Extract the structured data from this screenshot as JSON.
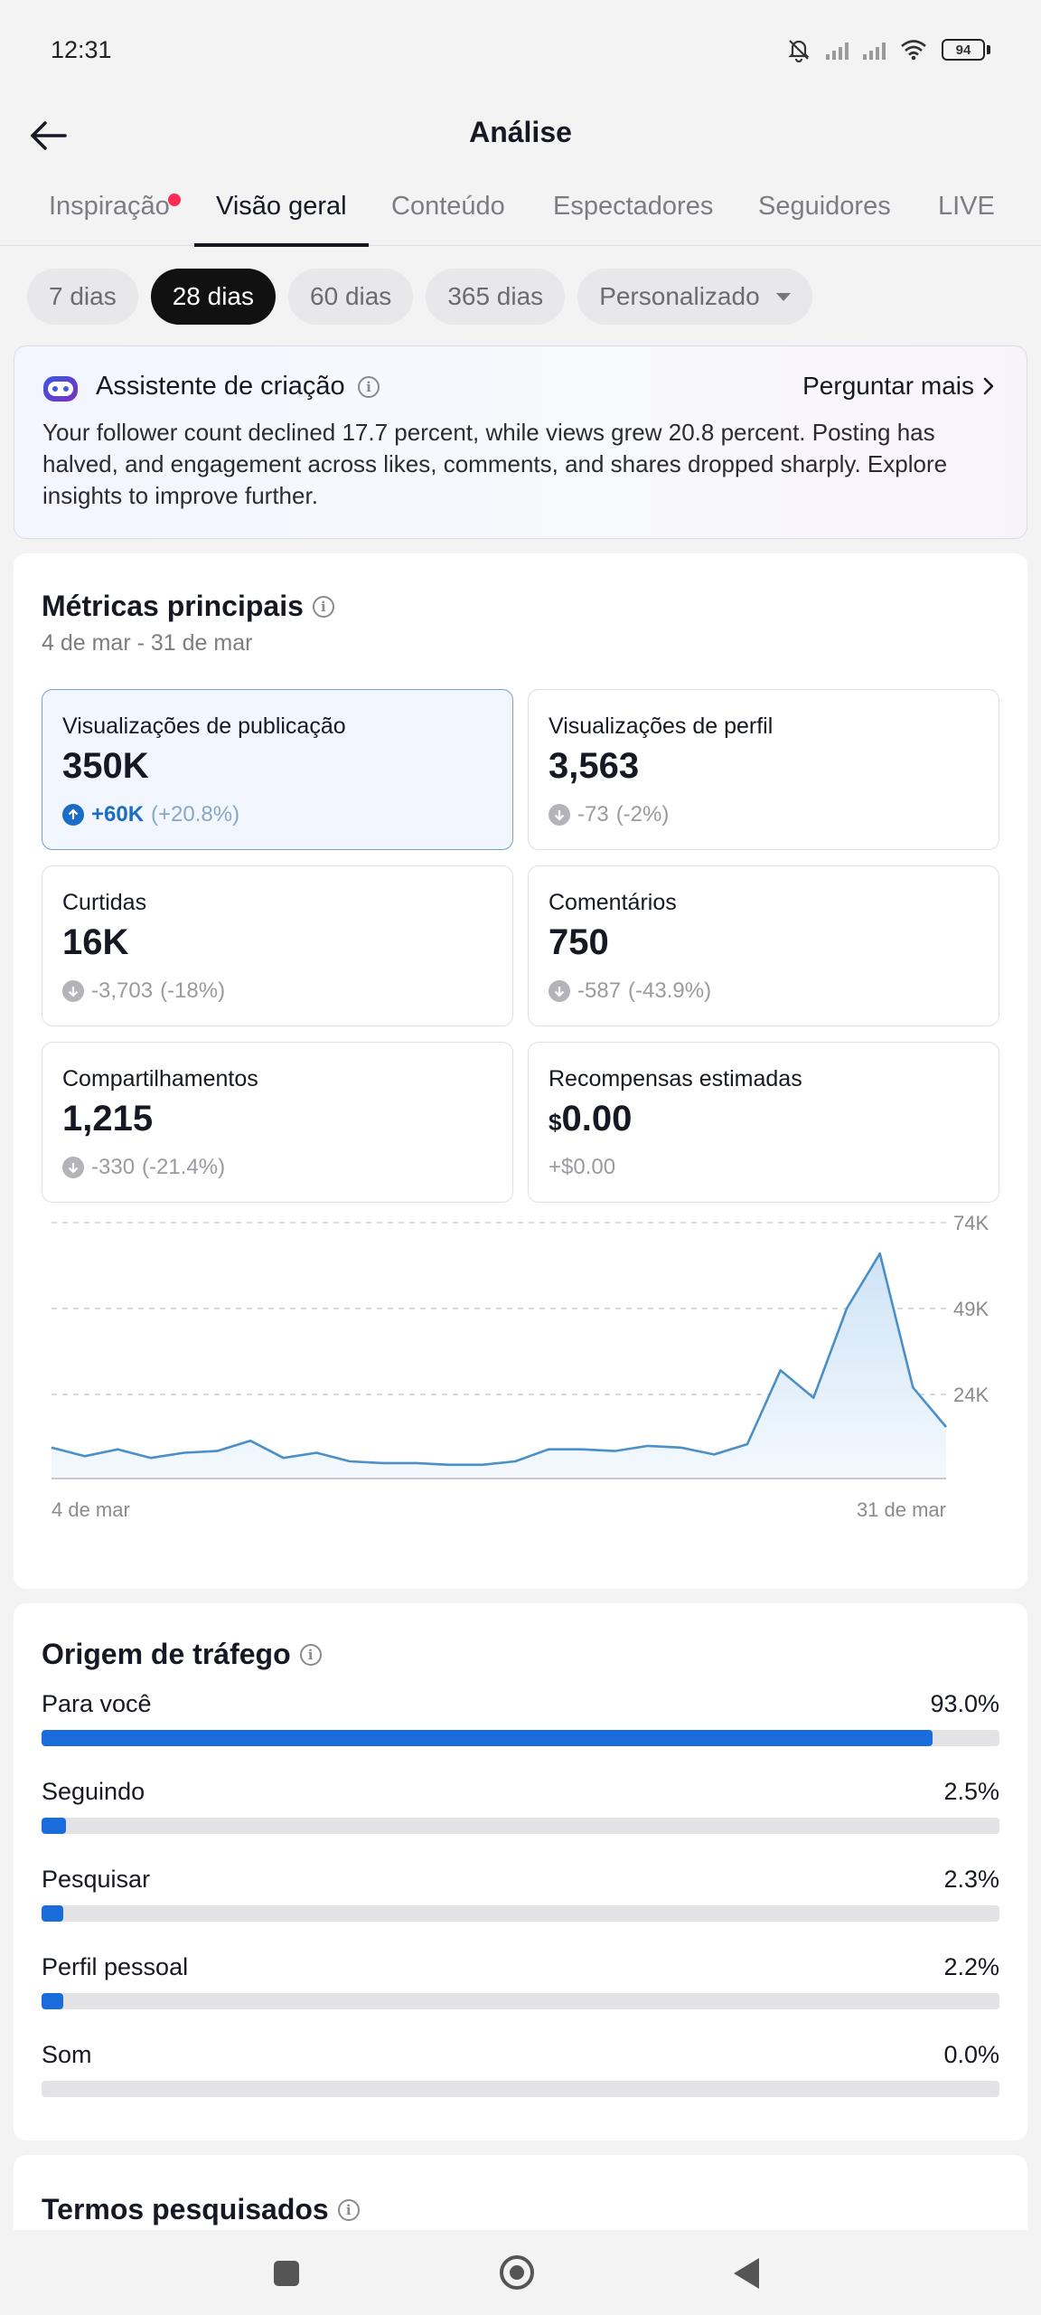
{
  "status_bar": {
    "time": "12:31",
    "battery": "94"
  },
  "header": {
    "title": "Análise"
  },
  "tabs": [
    {
      "label": "Inspiração",
      "has_dot": true
    },
    {
      "label": "Visão geral",
      "active": true
    },
    {
      "label": "Conteúdo"
    },
    {
      "label": "Espectadores"
    },
    {
      "label": "Seguidores"
    },
    {
      "label": "LIVE"
    }
  ],
  "ranges": [
    {
      "label": "7 dias"
    },
    {
      "label": "28 dias",
      "active": true
    },
    {
      "label": "60 dias"
    },
    {
      "label": "365 dias"
    },
    {
      "label": "Personalizado",
      "dropdown": true
    }
  ],
  "assistant": {
    "title": "Assistente de criação",
    "more_label": "Perguntar mais",
    "text": "Your follower count declined 17.7 percent, while views grew 20.8 percent. Posting has halved, and engagement across likes, comments, and shares dropped sharply. Explore insights to improve further."
  },
  "metrics": {
    "title": "Métricas principais",
    "date_range": "4 de mar - 31 de mar",
    "items": [
      {
        "label": "Visualizações de publicação",
        "value": "350K",
        "change": "+60K",
        "change_pct": "(+20.8%)",
        "trend": "up",
        "active": true
      },
      {
        "label": "Visualizações de perfil",
        "value": "3,563",
        "change": "-73",
        "change_pct": "(-2%)",
        "trend": "down"
      },
      {
        "label": "Curtidas",
        "value": "16K",
        "change": "-3,703",
        "change_pct": "(-18%)",
        "trend": "down"
      },
      {
        "label": "Comentários",
        "value": "750",
        "change": "-587",
        "change_pct": "(-43.9%)",
        "trend": "down"
      },
      {
        "label": "Compartilhamentos",
        "value": "1,215",
        "change": "-330",
        "change_pct": "(-21.4%)",
        "trend": "down"
      },
      {
        "label": "Recompensas estimadas",
        "currency": "$",
        "value": "0.00",
        "change": "+$0.00",
        "change_pct": "",
        "trend": "none"
      }
    ]
  },
  "chart_data": {
    "type": "area",
    "x_start_label": "4 de mar",
    "x_end_label": "31 de mar",
    "y_ticks": [
      {
        "label": "74K",
        "value": 74000
      },
      {
        "label": "49K",
        "value": 49000
      },
      {
        "label": "24K",
        "value": 24000
      }
    ],
    "ylim": [
      -500,
      74000
    ],
    "grid": true,
    "series": [
      {
        "values": [
          8500,
          6000,
          8000,
          5500,
          7000,
          7500,
          10500,
          5500,
          7000,
          4500,
          4000,
          4000,
          3500,
          3500,
          4500,
          8000,
          8000,
          7500,
          9000,
          8500,
          6500,
          9500,
          31000,
          23000,
          49000,
          65000,
          26000,
          14500
        ]
      }
    ],
    "colors": {
      "line": "#4a8fc8",
      "fill_top": "#cfe3f6",
      "fill_bottom": "#f4f9fe"
    }
  },
  "traffic": {
    "title": "Origem de tráfego",
    "items": [
      {
        "label": "Para você",
        "value": "93.0%",
        "pct": 93.0
      },
      {
        "label": "Seguindo",
        "value": "2.5%",
        "pct": 2.5
      },
      {
        "label": "Pesquisar",
        "value": "2.3%",
        "pct": 2.3
      },
      {
        "label": "Perfil pessoal",
        "value": "2.2%",
        "pct": 2.2
      },
      {
        "label": "Som",
        "value": "0.0%",
        "pct": 0.0
      }
    ]
  },
  "search_terms": {
    "title": "Termos pesquisados"
  }
}
